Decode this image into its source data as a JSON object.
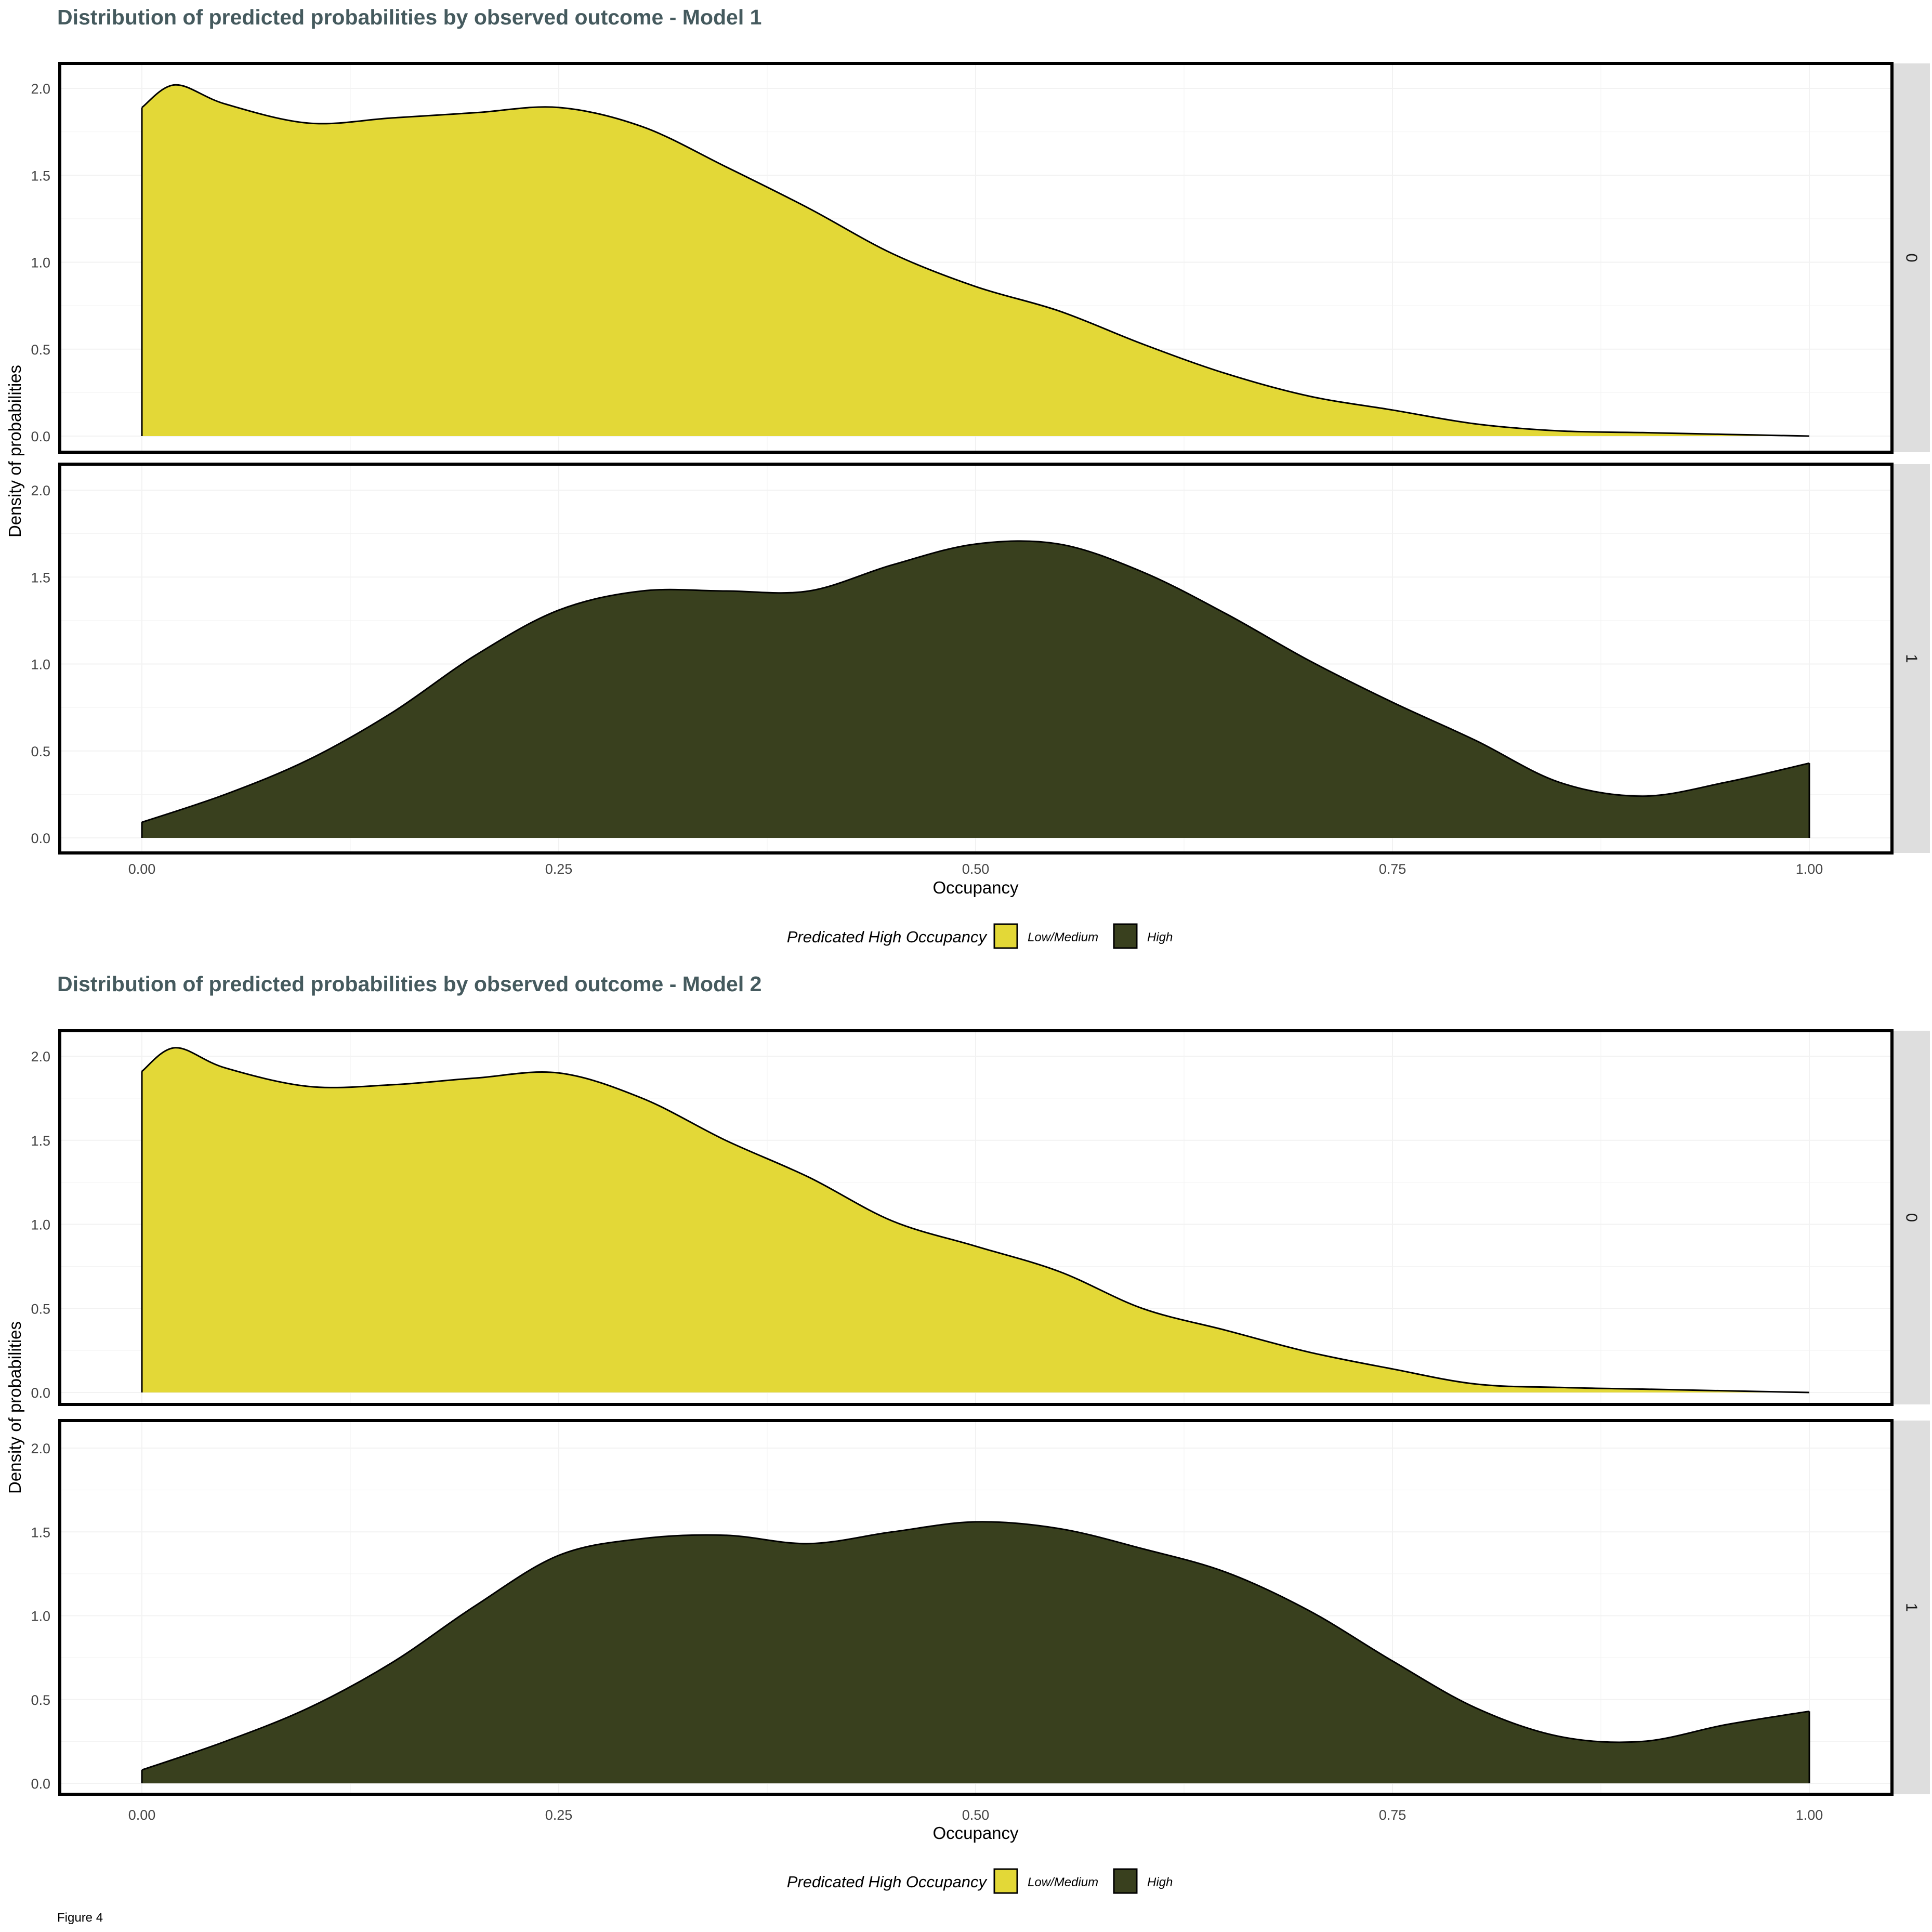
{
  "caption": "Figure 4",
  "colors": {
    "title": "#455a5e",
    "low_medium": "#e3d837",
    "high": "#39401e",
    "strip": "#dedede",
    "grid": "#f2f2f2"
  },
  "chart_data": [
    {
      "type": "area",
      "title": "Distribution of predicted probabilities by observed outcome - Model 1",
      "xlabel": "Occupancy",
      "ylabel": "Density of probabilities",
      "xlim": [
        0,
        1
      ],
      "ylim": [
        0,
        2
      ],
      "x_ticks": [
        "0.00",
        "0.25",
        "0.50",
        "0.75",
        "1.00"
      ],
      "y_ticks": [
        "0.0",
        "0.5",
        "1.0",
        "1.5",
        "2.0"
      ],
      "grid": true,
      "legend": {
        "title": "Predicated High Occupancy",
        "position": "bottom",
        "labels": [
          "Low/Medium",
          "High"
        ]
      },
      "facets": [
        {
          "strip": "0",
          "fill": "Low/Medium",
          "x": [
            0,
            0.02,
            0.05,
            0.1,
            0.15,
            0.2,
            0.25,
            0.3,
            0.35,
            0.4,
            0.45,
            0.5,
            0.55,
            0.6,
            0.65,
            0.7,
            0.75,
            0.8,
            0.85,
            0.9,
            0.95,
            1.0
          ],
          "y": [
            1.89,
            2.02,
            1.91,
            1.8,
            1.83,
            1.86,
            1.89,
            1.78,
            1.55,
            1.31,
            1.05,
            0.86,
            0.72,
            0.53,
            0.36,
            0.23,
            0.15,
            0.07,
            0.03,
            0.02,
            0.01,
            0.0
          ]
        },
        {
          "strip": "1",
          "fill": "High",
          "x": [
            0,
            0.05,
            0.1,
            0.15,
            0.2,
            0.25,
            0.3,
            0.35,
            0.4,
            0.45,
            0.5,
            0.55,
            0.6,
            0.65,
            0.7,
            0.75,
            0.8,
            0.85,
            0.9,
            0.95,
            1.0
          ],
          "y": [
            0.09,
            0.25,
            0.45,
            0.72,
            1.05,
            1.31,
            1.42,
            1.42,
            1.42,
            1.57,
            1.69,
            1.69,
            1.53,
            1.29,
            1.02,
            0.78,
            0.56,
            0.32,
            0.24,
            0.32,
            0.43
          ]
        }
      ]
    },
    {
      "type": "area",
      "title": "Distribution of predicted probabilities by observed outcome - Model 2",
      "xlabel": "Occupancy",
      "ylabel": "Density of probabilities",
      "xlim": [
        0,
        1
      ],
      "ylim": [
        0,
        2
      ],
      "x_ticks": [
        "0.00",
        "0.25",
        "0.50",
        "0.75",
        "1.00"
      ],
      "y_ticks": [
        "0.0",
        "0.5",
        "1.0",
        "1.5",
        "2.0"
      ],
      "grid": true,
      "legend": {
        "title": "Predicated High Occupancy",
        "position": "bottom",
        "labels": [
          "Low/Medium",
          "High"
        ]
      },
      "facets": [
        {
          "strip": "0",
          "fill": "Low/Medium",
          "x": [
            0,
            0.02,
            0.05,
            0.1,
            0.15,
            0.2,
            0.25,
            0.3,
            0.35,
            0.4,
            0.45,
            0.5,
            0.55,
            0.6,
            0.65,
            0.7,
            0.75,
            0.8,
            0.85,
            0.9,
            0.95,
            1.0
          ],
          "y": [
            1.91,
            2.05,
            1.93,
            1.82,
            1.83,
            1.87,
            1.9,
            1.75,
            1.5,
            1.28,
            1.02,
            0.87,
            0.72,
            0.5,
            0.37,
            0.24,
            0.14,
            0.05,
            0.03,
            0.02,
            0.01,
            0.0
          ]
        },
        {
          "strip": "1",
          "fill": "High",
          "x": [
            0,
            0.05,
            0.1,
            0.15,
            0.2,
            0.25,
            0.3,
            0.35,
            0.4,
            0.45,
            0.5,
            0.55,
            0.6,
            0.65,
            0.7,
            0.75,
            0.8,
            0.85,
            0.9,
            0.95,
            1.0
          ],
          "y": [
            0.08,
            0.25,
            0.45,
            0.72,
            1.06,
            1.36,
            1.46,
            1.48,
            1.43,
            1.5,
            1.56,
            1.52,
            1.4,
            1.26,
            1.03,
            0.73,
            0.45,
            0.28,
            0.25,
            0.35,
            0.43
          ]
        }
      ]
    }
  ]
}
